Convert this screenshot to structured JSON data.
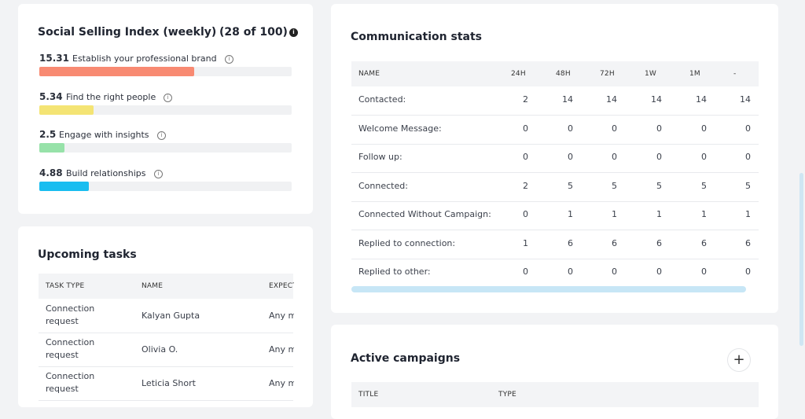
{
  "ssi": {
    "title": "Social Selling Index (weekly)",
    "total": {
      "score": 28,
      "max": 100,
      "label": "(28 of 100)"
    },
    "items": [
      {
        "score": 15.31,
        "label": "Establish your professional brand",
        "color": "#f88a72"
      },
      {
        "score": 5.34,
        "label": "Find the right people",
        "color": "#f4e474"
      },
      {
        "score": 2.5,
        "label": "Engage with insights",
        "color": "#97e2a9"
      },
      {
        "score": 4.88,
        "label": "Build relationships",
        "color": "#19bdf0"
      }
    ]
  },
  "tasks": {
    "title": "Upcoming tasks",
    "table": {
      "headers": [
        "TASK TYPE",
        "NAME",
        "EXPECT"
      ],
      "rows": [
        [
          "Connection request",
          "Kalyan Gupta",
          "Any m"
        ],
        [
          "Connection request",
          "Olivia O.",
          "Any m"
        ],
        [
          "Connection request",
          "Leticia Short",
          "Any m"
        ]
      ]
    }
  },
  "stats": {
    "title": "Communication stats",
    "table": {
      "headers": [
        "NAME",
        "24H",
        "48H",
        "72H",
        "1W",
        "1M",
        "-"
      ],
      "rows": [
        [
          "Contacted:",
          2,
          14,
          14,
          14,
          14,
          14
        ],
        [
          "Welcome Message:",
          0,
          0,
          0,
          0,
          0,
          0
        ],
        [
          "Follow up:",
          0,
          0,
          0,
          0,
          0,
          0
        ],
        [
          "Connected:",
          2,
          5,
          5,
          5,
          5,
          5
        ],
        [
          "Connected Without Campaign:",
          0,
          1,
          1,
          1,
          1,
          1
        ],
        [
          "Replied to connection:",
          1,
          6,
          6,
          6,
          6,
          6
        ],
        [
          "Replied to other:",
          0,
          0,
          0,
          0,
          0,
          0
        ]
      ]
    }
  },
  "campaigns": {
    "title": "Active campaigns",
    "table": {
      "headers": [
        "TITLE",
        "TYPE"
      ]
    }
  }
}
